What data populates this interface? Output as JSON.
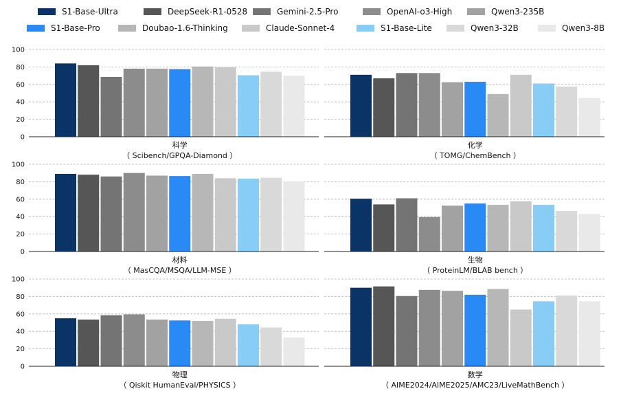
{
  "chart_data": {
    "type": "bar",
    "legend_position": "top",
    "grid": true,
    "grid_style": "dashed-horizontal",
    "ylim": [
      0,
      100
    ],
    "yticks": [
      0,
      20,
      40,
      60,
      80,
      100
    ],
    "series": [
      {
        "name": "S1-Base-Ultra",
        "color": "#0b3466"
      },
      {
        "name": "DeepSeek-R1-0528",
        "color": "#565656"
      },
      {
        "name": "Gemini-2.5-Pro",
        "color": "#747474"
      },
      {
        "name": "OpenAI-o3-High",
        "color": "#8c8c8c"
      },
      {
        "name": "Qwen3-235B",
        "color": "#a2a2a2"
      },
      {
        "name": "S1-Base-Pro",
        "color": "#2a8af5"
      },
      {
        "name": "Doubao-1.6-Thinking",
        "color": "#b7b7b7"
      },
      {
        "name": "Claude-Sonnet-4",
        "color": "#c9c9c9"
      },
      {
        "name": "S1-Base-Lite",
        "color": "#87cdf6"
      },
      {
        "name": "Qwen3-32B",
        "color": "#d9d9d9"
      },
      {
        "name": "Qwen3-8B",
        "color": "#e9e9e9"
      }
    ],
    "panels": [
      {
        "title": "科学",
        "subtitle": "（ Scibench/GPQA-Diamond ）",
        "values": [
          84,
          82,
          68.5,
          78,
          78,
          77.5,
          80.5,
          79.5,
          70.5,
          74.5,
          70
        ]
      },
      {
        "title": "化学",
        "subtitle": "（ TOMG/ChemBench ）",
        "values": [
          71,
          67,
          73,
          73,
          62.5,
          63,
          49,
          71,
          61,
          57.5,
          44.5
        ]
      },
      {
        "title": "材料",
        "subtitle": "（ MasCQA/MSQA/LLM-MSE ）",
        "values": [
          89,
          88,
          86,
          90,
          87,
          86.5,
          89,
          84,
          83.5,
          84.5,
          80.5
        ]
      },
      {
        "title": "生物",
        "subtitle": "（ ProteinLM/BLAB bench ）",
        "values": [
          60.5,
          54,
          61,
          39.5,
          52.5,
          55,
          53.5,
          57.5,
          53.5,
          46.5,
          43
        ]
      },
      {
        "title": "物理",
        "subtitle": "（ Qiskit HumanEval/PHYSICS ）",
        "values": [
          55,
          53.5,
          58.5,
          59.5,
          53.5,
          52.5,
          52,
          54.5,
          48,
          44.5,
          33
        ]
      },
      {
        "title": "数学",
        "subtitle": "（ AIME2024/AIME2025/AMC23/LiveMathBench ）",
        "values": [
          90,
          91.5,
          80.5,
          87.5,
          86.5,
          82,
          88.5,
          65,
          74.5,
          81,
          74.5
        ]
      }
    ]
  }
}
